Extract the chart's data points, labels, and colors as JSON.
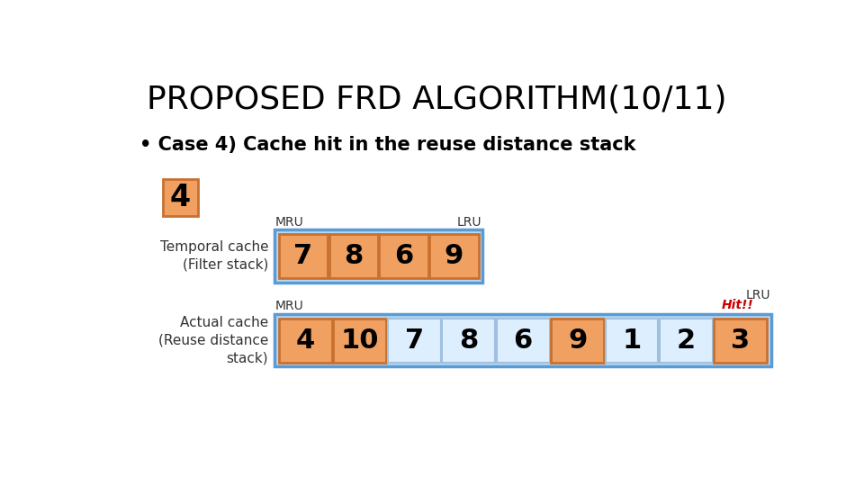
{
  "title": "PROPOSED FRD ALGORITHM(10/11)",
  "bullet": "Case 4) Cache hit in the reuse distance stack",
  "input_value": "4",
  "filter_stack_label": "Temporal cache\n(Filter stack)",
  "reuse_stack_label": "Actual cache\n(Reuse distance\nstack)",
  "filter_items": [
    "7",
    "8",
    "6",
    "9"
  ],
  "reuse_items": [
    "4",
    "10",
    "7",
    "8",
    "6",
    "9",
    "1",
    "2",
    "3"
  ],
  "reuse_highlighted": [
    0,
    1,
    5,
    8
  ],
  "hit_label": "Hit!!",
  "mru_label": "MRU",
  "lru_label": "LRU",
  "bg_color": "#ffffff",
  "title_color": "#000000",
  "cell_orange_color": "#f0a060",
  "cell_orange_border": "#c87030",
  "cell_light_color": "#ddeeff",
  "cell_light_border": "#a0c0e0",
  "container_color": "#b8d8f0",
  "container_border": "#5b9bd5",
  "hit_color": "#cc0000",
  "title_fontsize": 26,
  "bullet_fontsize": 15,
  "label_fontsize": 11,
  "cell_fontsize": 22,
  "tag_fontsize": 10
}
